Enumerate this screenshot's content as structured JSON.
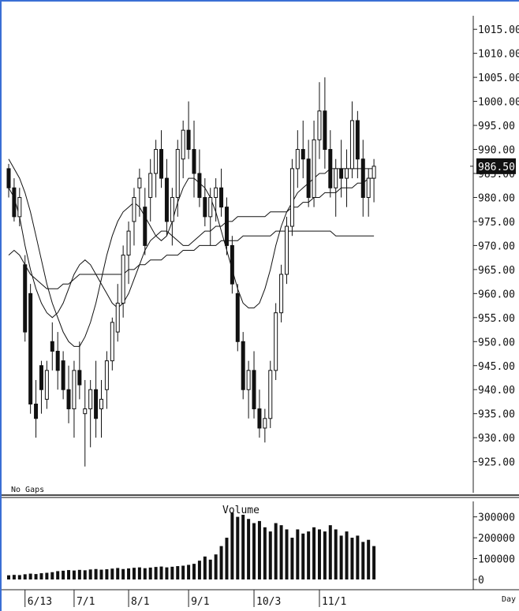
{
  "chart_data": [
    {
      "type": "candlestick",
      "ylim": [
        921,
        1017
      ],
      "y_ticks": [
        "1015.00",
        "1010.00",
        "1005.00",
        "1000.00",
        "995.00",
        "990.00",
        "985.00",
        "980.00",
        "975.00",
        "970.00",
        "965.00",
        "960.00",
        "955.00",
        "950.00",
        "945.00",
        "940.00",
        "935.00",
        "930.00",
        "925.00"
      ],
      "x_ticks": [
        "6/13",
        "7/1",
        "8/1",
        "9/1",
        "10/3",
        "11/1"
      ],
      "last_price_label": "986.50",
      "last_price": 986.5,
      "gap_label": "No Gaps",
      "x_axis_unit": "Day",
      "candles": [
        [
          986,
          987,
          980,
          982
        ],
        [
          982,
          984,
          975,
          976
        ],
        [
          976,
          982,
          974,
          980
        ],
        [
          966,
          968,
          950,
          952
        ],
        [
          960,
          962,
          935,
          937
        ],
        [
          937,
          942,
          930,
          934
        ],
        [
          945,
          946,
          935,
          940
        ],
        [
          938,
          946,
          936,
          944
        ],
        [
          950,
          954,
          944,
          948
        ],
        [
          948,
          952,
          940,
          944
        ],
        [
          946,
          948,
          938,
          940
        ],
        [
          940,
          945,
          933,
          936
        ],
        [
          936,
          946,
          930,
          944
        ],
        [
          944,
          950,
          938,
          941
        ],
        [
          935,
          942,
          924,
          936
        ],
        [
          936,
          942,
          928,
          940
        ],
        [
          940,
          946,
          930,
          934
        ],
        [
          936,
          942,
          930,
          938
        ],
        [
          940,
          948,
          936,
          946
        ],
        [
          946,
          955,
          944,
          954
        ],
        [
          952,
          962,
          950,
          958
        ],
        [
          958,
          970,
          955,
          968
        ],
        [
          968,
          975,
          962,
          973
        ],
        [
          975,
          982,
          970,
          980
        ],
        [
          982,
          986,
          976,
          984
        ],
        [
          978,
          982,
          968,
          970
        ],
        [
          980,
          988,
          975,
          985
        ],
        [
          985,
          992,
          980,
          990
        ],
        [
          990,
          994,
          982,
          984
        ],
        [
          984,
          988,
          972,
          975
        ],
        [
          975,
          982,
          970,
          980
        ],
        [
          980,
          992,
          976,
          990
        ],
        [
          988,
          996,
          984,
          994
        ],
        [
          994,
          1000,
          988,
          990
        ],
        [
          990,
          996,
          980,
          985
        ],
        [
          985,
          990,
          978,
          980
        ],
        [
          980,
          984,
          974,
          976
        ],
        [
          976,
          982,
          970,
          980
        ],
        [
          980,
          984,
          975,
          982
        ],
        [
          982,
          986,
          976,
          978
        ],
        [
          978,
          980,
          968,
          970
        ],
        [
          970,
          972,
          960,
          962
        ],
        [
          960,
          962,
          948,
          950
        ],
        [
          950,
          952,
          938,
          940
        ],
        [
          940,
          946,
          934,
          944
        ],
        [
          944,
          948,
          934,
          936
        ],
        [
          936,
          940,
          930,
          932
        ],
        [
          932,
          936,
          929,
          934
        ],
        [
          934,
          946,
          932,
          944
        ],
        [
          944,
          958,
          942,
          956
        ],
        [
          956,
          966,
          954,
          964
        ],
        [
          964,
          976,
          962,
          974
        ],
        [
          974,
          988,
          972,
          986
        ],
        [
          986,
          994,
          982,
          990
        ],
        [
          990,
          996,
          984,
          988
        ],
        [
          988,
          992,
          978,
          980
        ],
        [
          980,
          996,
          978,
          992
        ],
        [
          992,
          1004,
          988,
          998
        ],
        [
          998,
          1005,
          986,
          990
        ],
        [
          990,
          994,
          980,
          982
        ],
        [
          982,
          988,
          976,
          986
        ],
        [
          986,
          992,
          980,
          984
        ],
        [
          984,
          990,
          978,
          986
        ],
        [
          986,
          1000,
          984,
          996
        ],
        [
          996,
          998,
          984,
          988
        ],
        [
          988,
          992,
          976,
          980
        ],
        [
          980,
          986,
          976,
          984
        ],
        [
          984,
          988,
          979,
          986.5
        ]
      ],
      "series": [
        {
          "type": "line",
          "values": [
            988,
            986,
            984,
            981,
            977,
            972,
            967,
            962,
            958,
            955,
            952,
            950,
            949,
            949,
            951,
            954,
            958,
            963,
            968,
            972,
            975,
            977,
            978,
            979,
            978,
            976,
            974,
            972,
            971,
            972,
            975,
            979,
            982,
            984,
            984,
            983,
            982,
            980,
            977,
            973,
            969,
            965,
            961,
            958,
            957,
            957,
            958,
            961,
            965,
            970,
            974,
            977,
            979,
            981,
            982,
            983,
            984,
            985,
            985,
            986,
            986,
            986,
            986,
            986,
            986,
            986,
            986,
            986
          ]
        },
        {
          "type": "line",
          "values": [
            982,
            980,
            976,
            970,
            965,
            961,
            958,
            956,
            955,
            956,
            958,
            961,
            964,
            966,
            967,
            966,
            964,
            962,
            960,
            958,
            957,
            958,
            960,
            963,
            966,
            969,
            971,
            972,
            973,
            973,
            972,
            971,
            970,
            970,
            971,
            972,
            973,
            973,
            974,
            974,
            975,
            975,
            976,
            976,
            976,
            976,
            976,
            976,
            977,
            977,
            977,
            977,
            978,
            978,
            979,
            979,
            980,
            980,
            981,
            981,
            981,
            982,
            982,
            982,
            983,
            983,
            984,
            984
          ]
        },
        {
          "type": "line",
          "values": [
            968,
            969,
            968,
            966,
            964,
            963,
            962,
            961,
            961,
            961,
            962,
            962,
            963,
            964,
            964,
            964,
            964,
            964,
            964,
            964,
            964,
            964,
            965,
            965,
            966,
            966,
            967,
            967,
            967,
            968,
            968,
            968,
            969,
            969,
            969,
            970,
            970,
            970,
            970,
            971,
            971,
            971,
            971,
            972,
            972,
            972,
            972,
            972,
            972,
            973,
            973,
            973,
            973,
            973,
            973,
            973,
            973,
            973,
            973,
            973,
            972,
            972,
            972,
            972,
            972,
            972,
            972,
            972
          ]
        }
      ]
    },
    {
      "type": "bar",
      "title": "Volume",
      "ylim": [
        0,
        340000
      ],
      "y_ticks": [
        "300000",
        "200000",
        "100000",
        "0"
      ],
      "values": [
        20000,
        22000,
        21000,
        25000,
        28000,
        26000,
        30000,
        32000,
        35000,
        40000,
        42000,
        45000,
        43000,
        46000,
        44000,
        48000,
        50000,
        47000,
        49000,
        52000,
        55000,
        50000,
        53000,
        56000,
        58000,
        54000,
        57000,
        60000,
        62000,
        58000,
        61000,
        64000,
        66000,
        70000,
        75000,
        90000,
        110000,
        95000,
        120000,
        160000,
        200000,
        320000,
        300000,
        310000,
        290000,
        270000,
        280000,
        250000,
        230000,
        270000,
        260000,
        240000,
        200000,
        240000,
        220000,
        230000,
        250000,
        240000,
        230000,
        260000,
        240000,
        210000,
        230000,
        200000,
        210000,
        180000,
        190000,
        160000
      ]
    }
  ]
}
